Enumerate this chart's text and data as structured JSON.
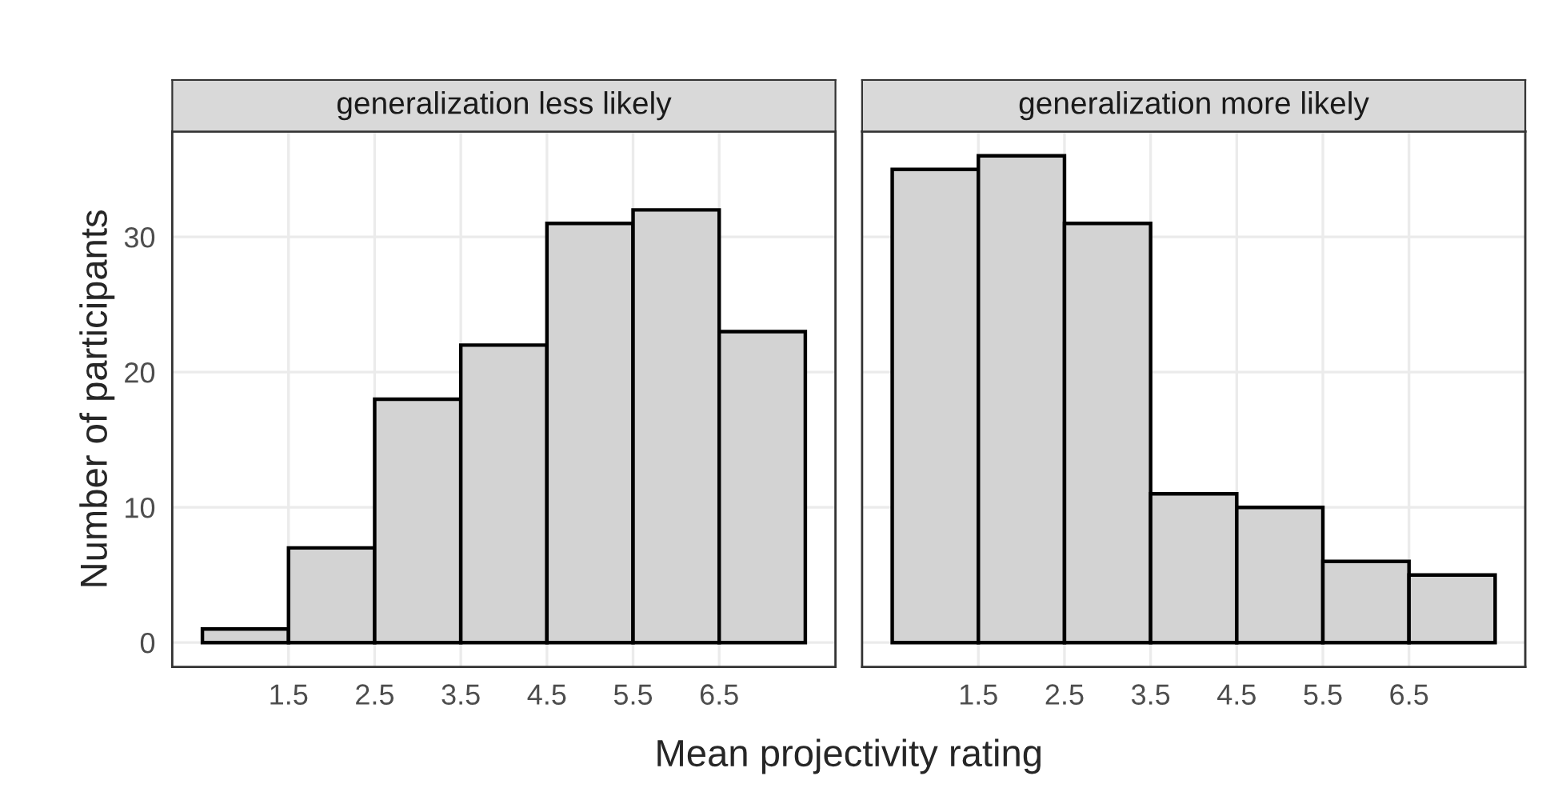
{
  "chart_data": [
    {
      "type": "histogram",
      "title": "generalization less likely",
      "xlabel": "Mean projectivity rating",
      "ylabel": "Number of participants",
      "bins": [
        0.5,
        1.5,
        2.5,
        3.5,
        4.5,
        5.5,
        6.5,
        7.5
      ],
      "values": [
        1,
        7,
        18,
        22,
        31,
        32,
        23
      ],
      "color": "#d3d3d3",
      "xlim": [
        0.15,
        7.85
      ],
      "xticks": [
        1.5,
        2.5,
        3.5,
        4.5,
        5.5,
        6.5
      ],
      "ylim": [
        -1.8,
        37.8
      ],
      "yticks": [
        0,
        10,
        20,
        30
      ],
      "grid": true
    },
    {
      "type": "histogram",
      "title": "generalization more likely",
      "bins": [
        0.5,
        1.5,
        2.5,
        3.5,
        4.5,
        5.5,
        6.5,
        7.5
      ],
      "values": [
        35,
        36,
        31,
        11,
        10,
        6,
        5
      ],
      "color": "#d3d3d3",
      "xlim": [
        0.15,
        7.85
      ],
      "xticks": [
        1.5,
        2.5,
        3.5,
        4.5,
        5.5,
        6.5
      ],
      "ylim": [
        -1.8,
        37.8
      ],
      "yticks": [
        0,
        10,
        20,
        30
      ],
      "grid": true,
      "tick_labels": "x"
    }
  ]
}
